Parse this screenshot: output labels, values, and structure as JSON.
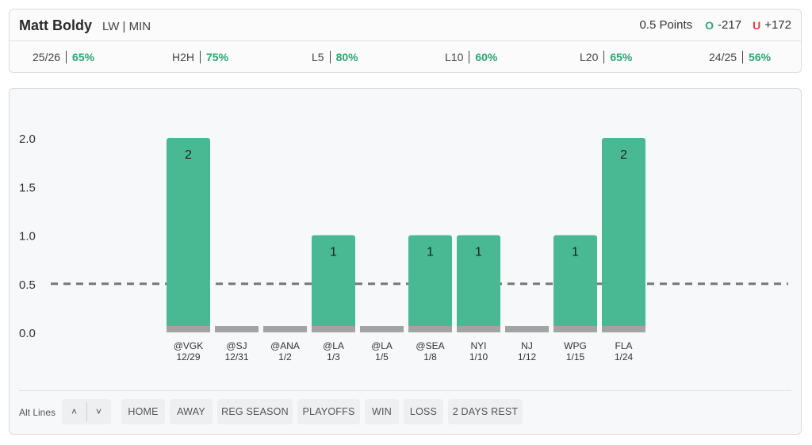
{
  "header": {
    "player_name": "Matt Boldy",
    "player_pos": "LW | MIN",
    "points_line": "0.5 Points",
    "over_icon": "O",
    "over_odds": "-217",
    "under_icon": "U",
    "under_odds": "+172"
  },
  "stats": [
    {
      "label": "25/26",
      "pct": "65%"
    },
    {
      "label": "H2H",
      "pct": "75%"
    },
    {
      "label": "L5",
      "pct": "80%"
    },
    {
      "label": "L10",
      "pct": "60%"
    },
    {
      "label": "L20",
      "pct": "65%"
    },
    {
      "label": "24/25",
      "pct": "56%"
    }
  ],
  "chart_data": {
    "type": "bar",
    "title": "",
    "xlabel": "",
    "ylabel": "",
    "ylim": [
      0,
      2
    ],
    "yticks": [
      "0.0",
      "0.5",
      "1.0",
      "1.5",
      "2.0"
    ],
    "line": 0.5,
    "categories": [
      {
        "opp": "@VGK",
        "date": "12/29"
      },
      {
        "opp": "@SJ",
        "date": "12/31"
      },
      {
        "opp": "@ANA",
        "date": "1/2"
      },
      {
        "opp": "@LA",
        "date": "1/3"
      },
      {
        "opp": "@LA",
        "date": "1/5"
      },
      {
        "opp": "@SEA",
        "date": "1/8"
      },
      {
        "opp": "NYI",
        "date": "1/10"
      },
      {
        "opp": "NJ",
        "date": "1/12"
      },
      {
        "opp": "WPG",
        "date": "1/15"
      },
      {
        "opp": "FLA",
        "date": "1/24"
      }
    ],
    "values": [
      2,
      0,
      0,
      1,
      0,
      1,
      1,
      0,
      1,
      2
    ],
    "labels": [
      "2",
      "",
      "",
      "1",
      "",
      "1",
      "1",
      "",
      "1",
      "2"
    ],
    "colors": {
      "hit": "#49b993",
      "base": "#a3a3a3",
      "line": "#777777"
    }
  },
  "filters": {
    "alt_lines_label": "Alt Lines",
    "up_icon": "˄",
    "down_icon": "˅",
    "buttons": [
      "HOME",
      "AWAY",
      "REG SEASON",
      "PLAYOFFS",
      "WIN",
      "LOSS",
      "2 DAYS REST"
    ]
  }
}
